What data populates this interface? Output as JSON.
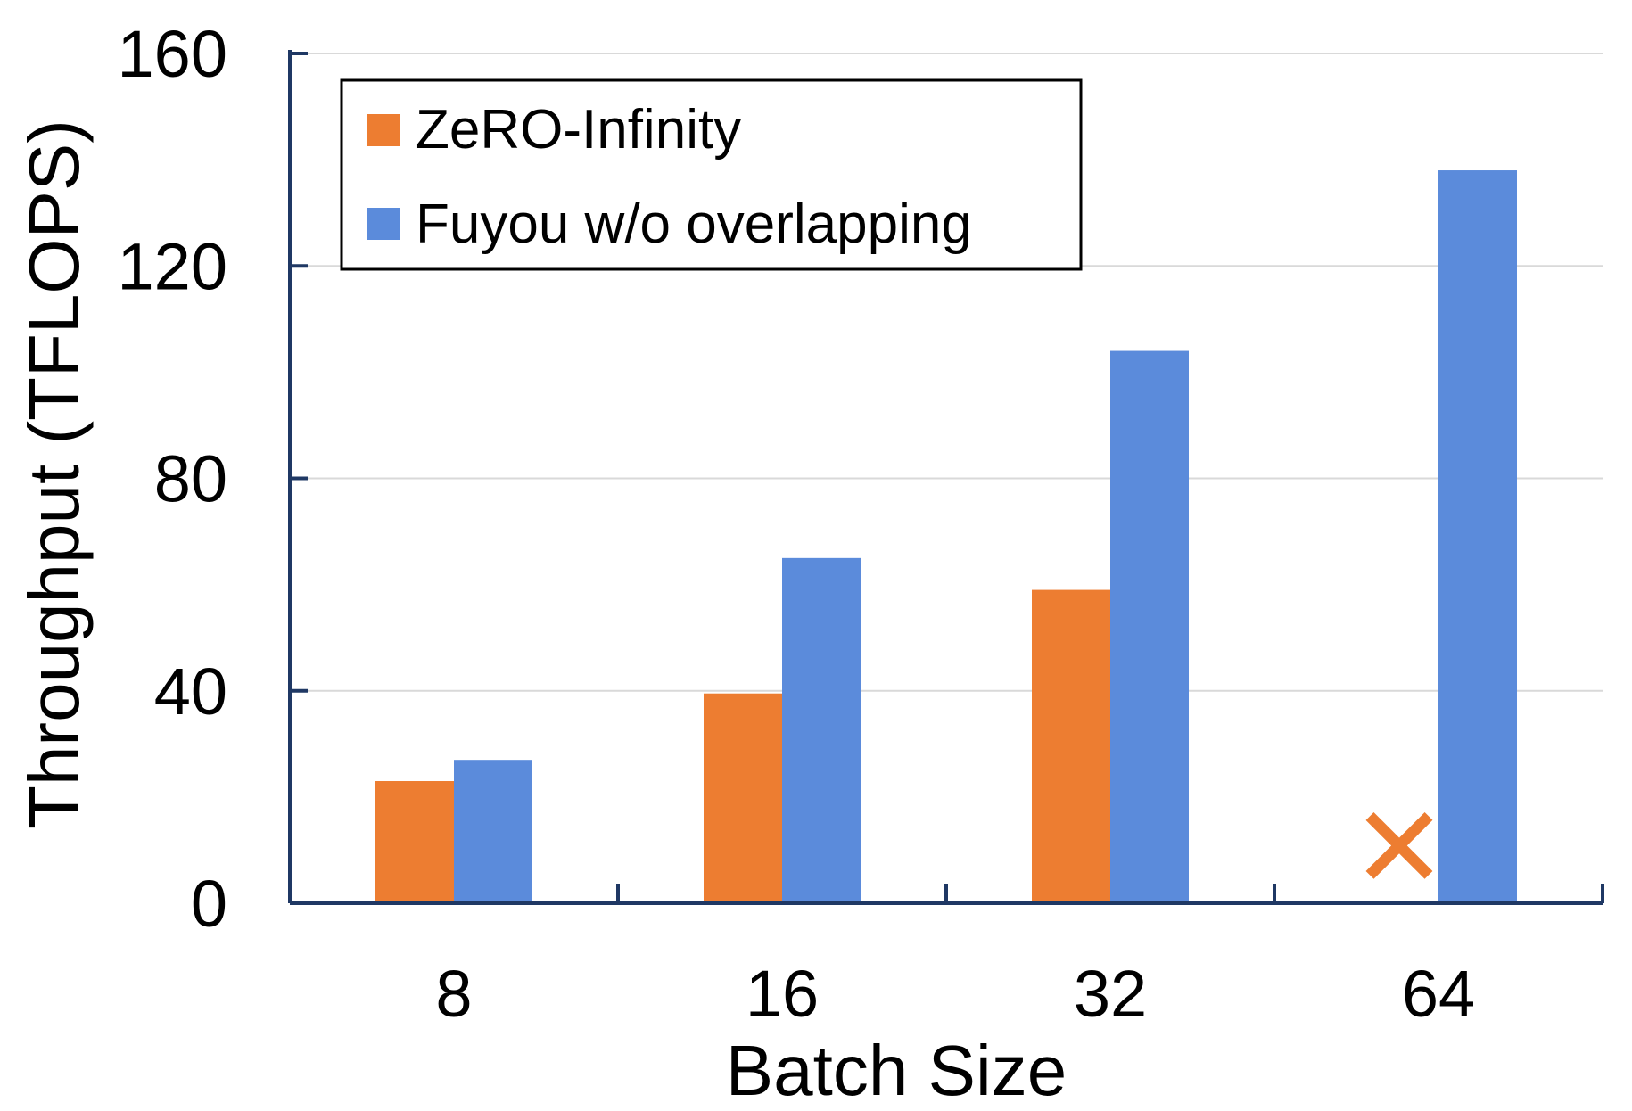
{
  "chart_data": {
    "type": "bar",
    "title": "",
    "xlabel": "Batch Size",
    "ylabel": "Throughput (TFLOPS)",
    "categories": [
      "8",
      "16",
      "32",
      "64"
    ],
    "ylim": [
      0,
      160
    ],
    "yticks": [
      0,
      40,
      80,
      120,
      160
    ],
    "grid": true,
    "legend_position": "top-left",
    "series": [
      {
        "name": "ZeRO-Infinity",
        "color": "#ED7D31",
        "values": [
          23,
          39.5,
          59,
          null
        ]
      },
      {
        "name": "Fuyou w/o overlapping",
        "color": "#5B8BDB",
        "values": [
          27,
          65,
          104,
          138
        ]
      }
    ],
    "annotations": [
      {
        "type": "marker",
        "symbol": "x",
        "label": "✕",
        "series": "ZeRO-Infinity",
        "category": "64",
        "meaning": "missing",
        "color": "#ED7D31"
      }
    ]
  }
}
